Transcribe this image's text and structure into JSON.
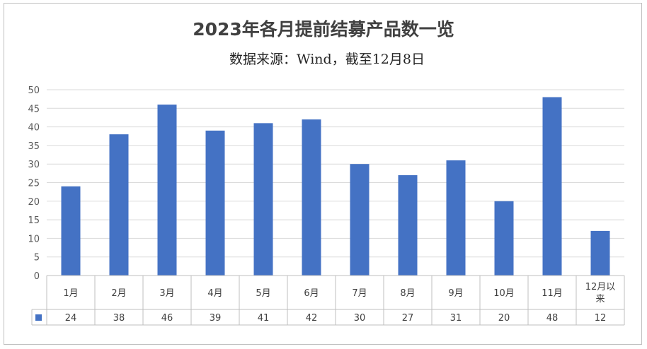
{
  "chart_data": {
    "type": "bar",
    "title": "2023年各月提前结募产品数一览",
    "subtitle": "数据来源：Wind，截至12月8日",
    "categories": [
      "1月",
      "2月",
      "3月",
      "4月",
      "5月",
      "6月",
      "7月",
      "8月",
      "9月",
      "10月",
      "11月",
      "12月以来"
    ],
    "categories_display": [
      [
        "1月"
      ],
      [
        "2月"
      ],
      [
        "3月"
      ],
      [
        "4月"
      ],
      [
        "5月"
      ],
      [
        "6月"
      ],
      [
        "7月"
      ],
      [
        "8月"
      ],
      [
        "9月"
      ],
      [
        "10月"
      ],
      [
        "11月"
      ],
      [
        "12月以",
        "来"
      ]
    ],
    "series": [
      {
        "values": [
          24,
          38,
          46,
          39,
          41,
          42,
          30,
          27,
          31,
          20,
          48,
          12
        ],
        "color": "#4472c4"
      }
    ],
    "ylim": [
      0,
      50
    ],
    "yticks": [
      0,
      5,
      10,
      15,
      20,
      25,
      30,
      35,
      40,
      45,
      50
    ],
    "grid": true,
    "data_table": true,
    "legend": "data-table-key"
  }
}
